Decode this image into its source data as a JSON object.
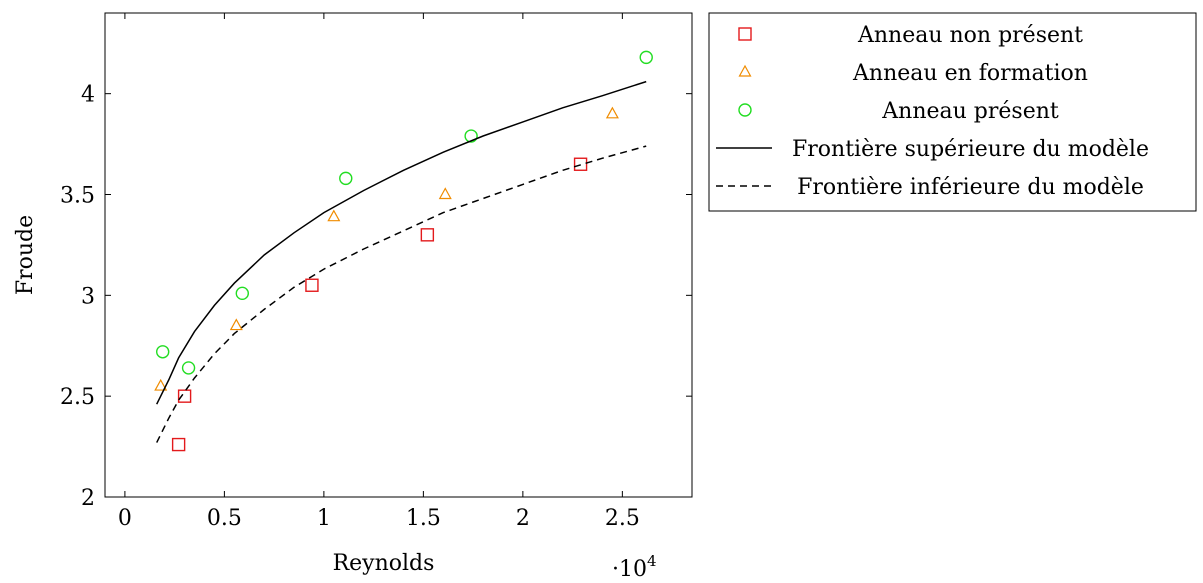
{
  "chart_data": {
    "type": "scatter",
    "title": "",
    "xlabel": "Reynolds",
    "ylabel": "Froude",
    "x_multiplier_label": "·10",
    "x_multiplier_exponent": "4",
    "xlim": [
      -0.1,
      2.85
    ],
    "ylim": [
      2.0,
      4.4
    ],
    "x_ticks": [
      0,
      0.5,
      1,
      1.5,
      2,
      2.5
    ],
    "x_tick_labels": [
      "0",
      "0.5",
      "1",
      "1.5",
      "2",
      "2.5"
    ],
    "y_ticks": [
      2,
      2.5,
      3,
      3.5,
      4
    ],
    "y_tick_labels": [
      "2",
      "2.5",
      "3",
      "3.5",
      "4"
    ],
    "grid": false,
    "legend_position": "outside-right",
    "series": [
      {
        "name": "Anneau non présent",
        "marker": "square",
        "color": "#e31a1c",
        "points": [
          [
            0.27,
            2.26
          ],
          [
            0.3,
            2.5
          ],
          [
            0.94,
            3.05
          ],
          [
            1.52,
            3.3
          ],
          [
            2.29,
            3.65
          ]
        ]
      },
      {
        "name": "Anneau en formation",
        "marker": "triangle",
        "color": "#f08c00",
        "points": [
          [
            0.18,
            2.55
          ],
          [
            0.56,
            2.85
          ],
          [
            1.05,
            3.39
          ],
          [
            1.61,
            3.5
          ],
          [
            2.45,
            3.9
          ]
        ]
      },
      {
        "name": "Anneau présent",
        "marker": "circle",
        "color": "#22dd22",
        "points": [
          [
            0.19,
            2.72
          ],
          [
            0.32,
            2.64
          ],
          [
            0.59,
            3.01
          ],
          [
            1.11,
            3.58
          ],
          [
            1.74,
            3.79
          ],
          [
            2.62,
            4.18
          ]
        ]
      },
      {
        "name": "Frontière supérieure du modèle",
        "marker": "line-solid",
        "color": "#000000",
        "points": [
          [
            0.16,
            2.46
          ],
          [
            0.22,
            2.58
          ],
          [
            0.27,
            2.69
          ],
          [
            0.35,
            2.82
          ],
          [
            0.45,
            2.95
          ],
          [
            0.55,
            3.06
          ],
          [
            0.7,
            3.2
          ],
          [
            0.85,
            3.31
          ],
          [
            1.0,
            3.41
          ],
          [
            1.2,
            3.52
          ],
          [
            1.4,
            3.62
          ],
          [
            1.6,
            3.71
          ],
          [
            1.8,
            3.79
          ],
          [
            2.0,
            3.86
          ],
          [
            2.2,
            3.93
          ],
          [
            2.4,
            3.99
          ],
          [
            2.62,
            4.06
          ]
        ]
      },
      {
        "name": "Frontière inférieure du modèle",
        "marker": "line-dashed",
        "color": "#000000",
        "points": [
          [
            0.16,
            2.27
          ],
          [
            0.22,
            2.39
          ],
          [
            0.27,
            2.48
          ],
          [
            0.35,
            2.59
          ],
          [
            0.45,
            2.71
          ],
          [
            0.55,
            2.81
          ],
          [
            0.7,
            2.93
          ],
          [
            0.85,
            3.04
          ],
          [
            1.0,
            3.13
          ],
          [
            1.2,
            3.23
          ],
          [
            1.4,
            3.32
          ],
          [
            1.6,
            3.41
          ],
          [
            1.8,
            3.48
          ],
          [
            2.0,
            3.55
          ],
          [
            2.2,
            3.62
          ],
          [
            2.4,
            3.68
          ],
          [
            2.62,
            3.74
          ]
        ]
      }
    ]
  }
}
